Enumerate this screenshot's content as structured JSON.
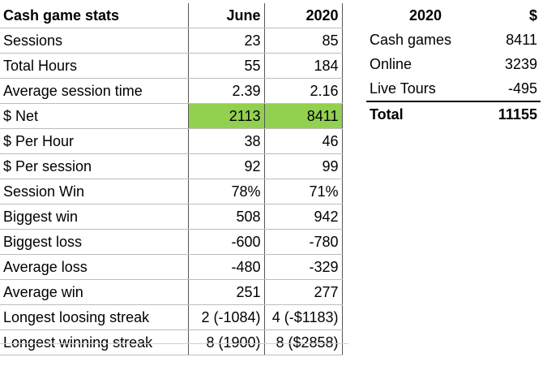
{
  "left": {
    "headers": [
      "Cash game stats",
      "June",
      "2020"
    ],
    "rows": [
      [
        "Sessions",
        "23",
        "85"
      ],
      [
        "Total Hours",
        "55",
        "184"
      ],
      [
        "Average session time",
        "2.39",
        "2.16"
      ],
      [
        "$ Net",
        "2113",
        "8411"
      ],
      [
        "$ Per Hour",
        "38",
        "46"
      ],
      [
        "$ Per session",
        "92",
        "99"
      ],
      [
        "Session Win",
        "78%",
        "71%"
      ],
      [
        "Biggest win",
        "508",
        "942"
      ],
      [
        "Biggest loss",
        "-600",
        "-780"
      ],
      [
        "Average loss",
        "-480",
        "-329"
      ],
      [
        "Average win",
        "251",
        "277"
      ],
      [
        "Longest loosing streak",
        "2 (-1084)",
        "4 (-$1183)"
      ],
      [
        "Longest winning streak",
        "8 (1900)",
        "8 ($2858)"
      ]
    ],
    "highlight_color": "#92d050"
  },
  "right": {
    "headers": [
      "2020",
      "$"
    ],
    "rows": [
      [
        "Cash games",
        "8411"
      ],
      [
        "Online",
        "3239"
      ],
      [
        "Live Tours",
        "-495"
      ]
    ],
    "total": [
      "Total",
      "11155"
    ]
  }
}
